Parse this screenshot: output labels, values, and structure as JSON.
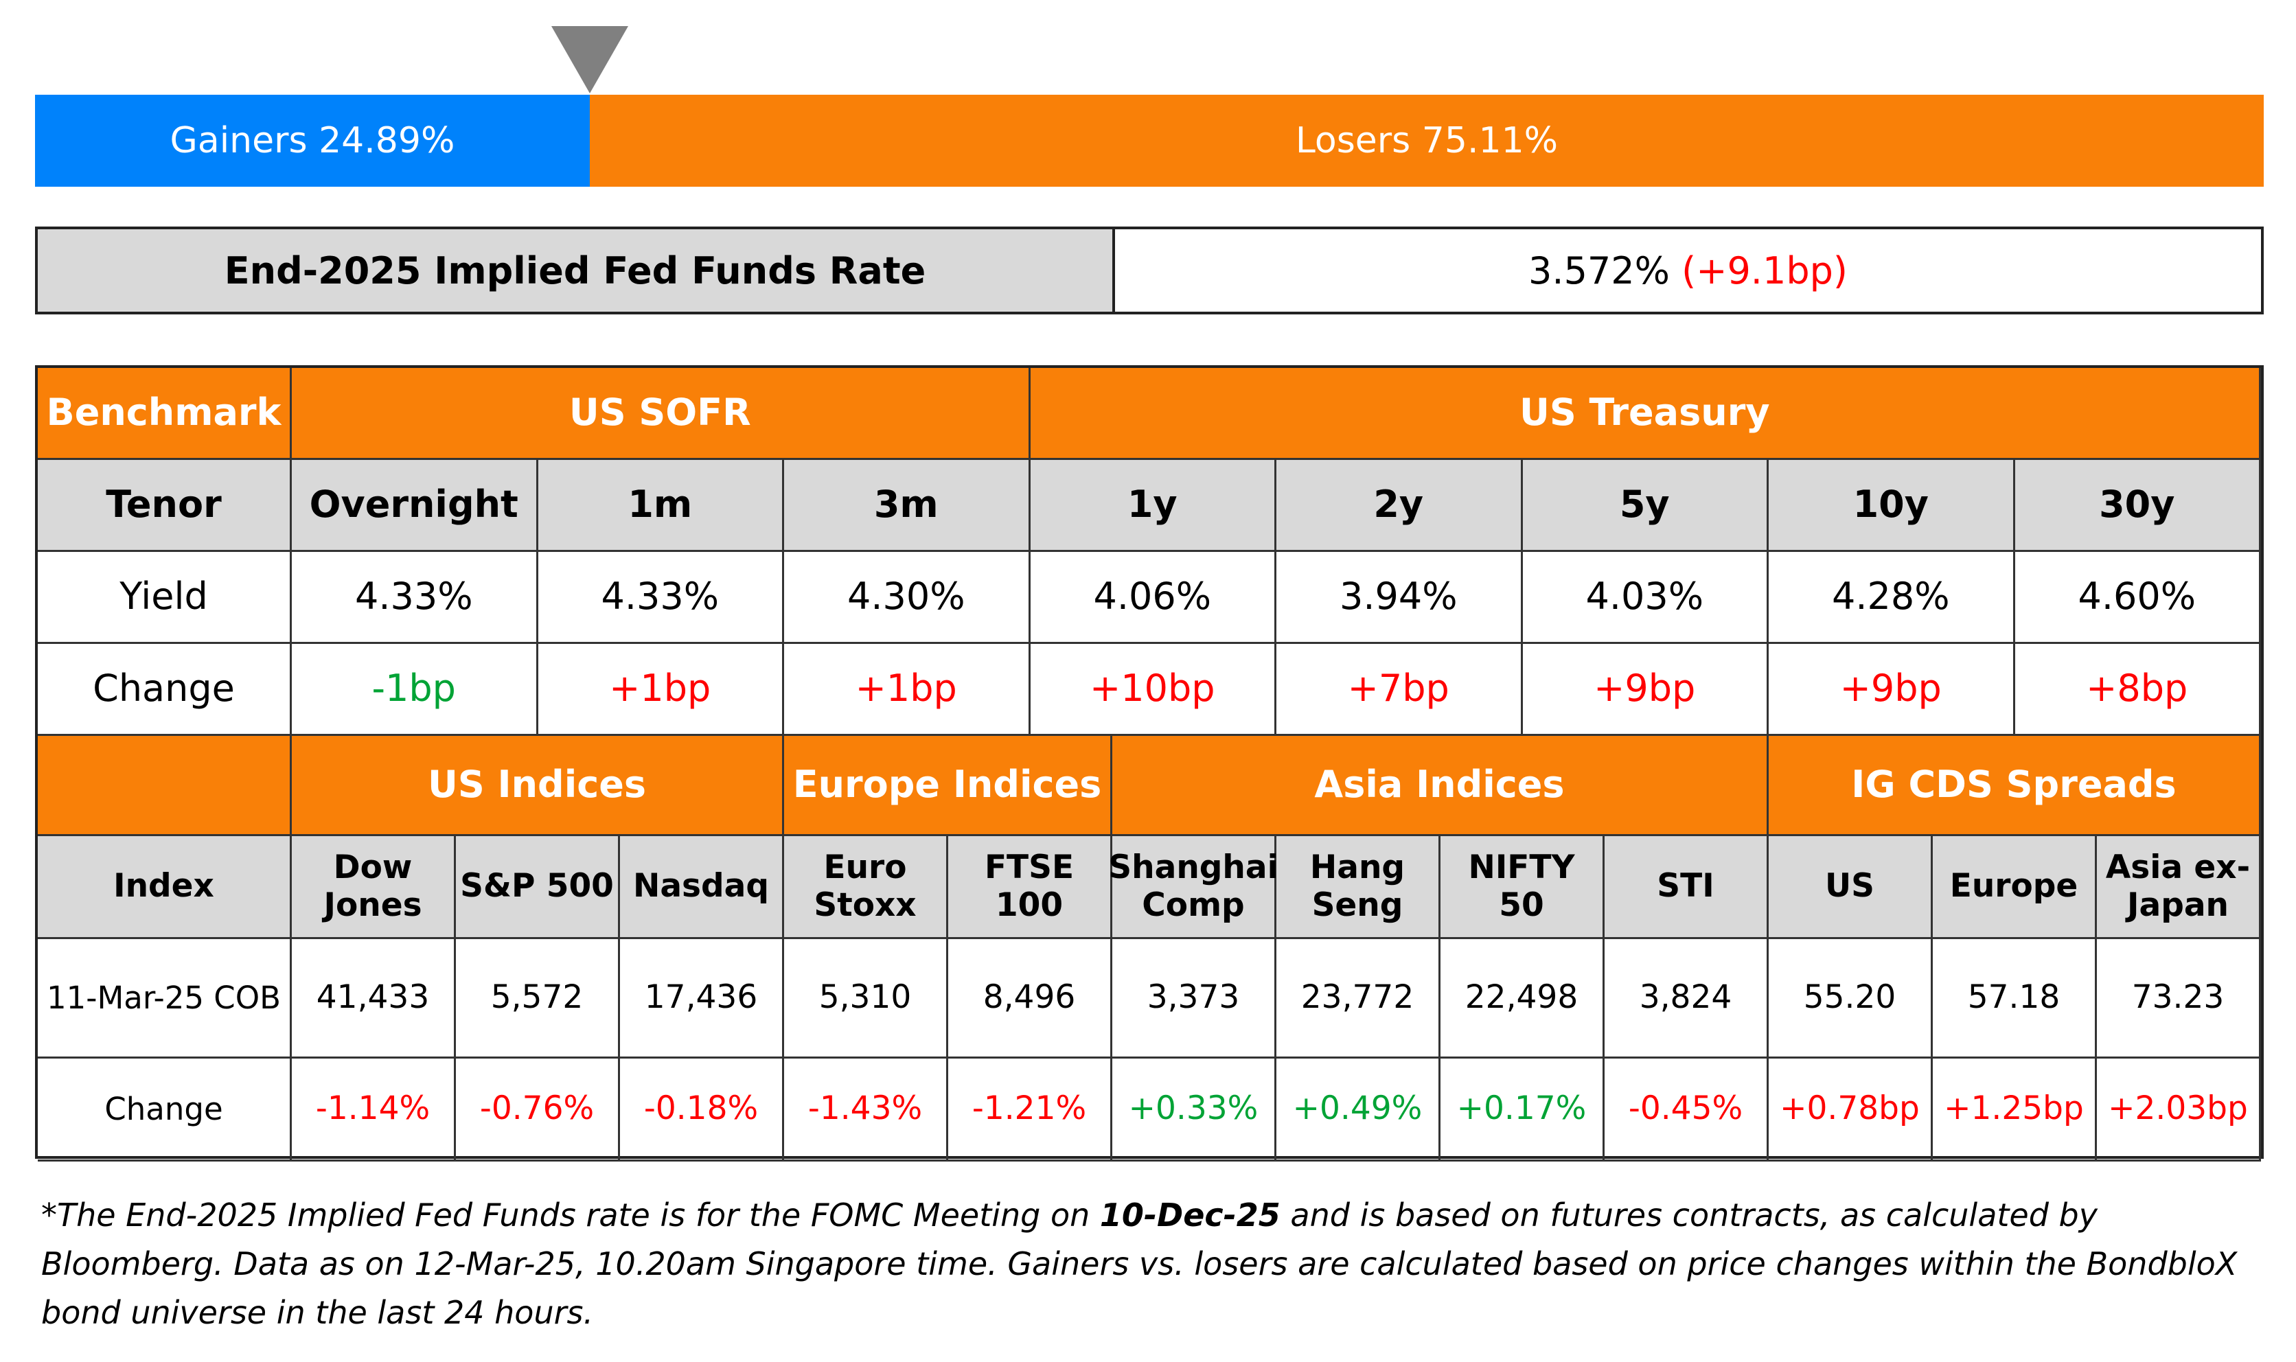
{
  "breadth": {
    "gainers_label": "Gainers 24.89%",
    "losers_label": "Losers 75.11%",
    "gainers_pct": 24.89,
    "losers_pct": 75.11,
    "gainers_color": "#0082fb",
    "losers_color": "#f98008"
  },
  "fed_funds": {
    "label": "End-2025 Implied Fed Funds Rate",
    "value": "3.572%",
    "change": "(+9.1bp)"
  },
  "rates": {
    "benchmark_label": "Benchmark",
    "sofr_label": "US SOFR",
    "treasury_label": "US Treasury",
    "tenor_label": "Tenor",
    "yield_label": "Yield",
    "change_label": "Change",
    "tenors": [
      "Overnight",
      "1m",
      "3m",
      "1y",
      "2y",
      "5y",
      "10y",
      "30y"
    ],
    "yields": [
      "4.33%",
      "4.33%",
      "4.30%",
      "4.06%",
      "3.94%",
      "4.03%",
      "4.28%",
      "4.60%"
    ],
    "changes": [
      "-1bp",
      "+1bp",
      "+1bp",
      "+10bp",
      "+7bp",
      "+9bp",
      "+9bp",
      "+8bp"
    ]
  },
  "indices": {
    "us_label": "US Indices",
    "europe_label": "Europe Indices",
    "asia_label": "Asia Indices",
    "cds_label": "IG CDS Spreads",
    "index_label": "Index",
    "date_label": "11-Mar-25 COB",
    "change_label": "Change",
    "names": [
      "Dow Jones",
      "S&P 500",
      "Nasdaq",
      "Euro Stoxx",
      "FTSE 100",
      "Shanghai Comp",
      "Hang Seng",
      "NIFTY 50",
      "STI",
      "US",
      "Europe",
      "Asia ex-Japan"
    ],
    "values": [
      "41,433",
      "5,572",
      "17,436",
      "5,310",
      "8,496",
      "3,373",
      "23,772",
      "22,498",
      "3,824",
      "55.20",
      "57.18",
      "73.23"
    ],
    "changes": [
      "-1.14%",
      "-0.76%",
      "-0.18%",
      "-1.43%",
      "-1.21%",
      "+0.33%",
      "+0.49%",
      "+0.17%",
      "-0.45%",
      "+0.78bp",
      "+1.25bp",
      "+2.03bp"
    ]
  },
  "footnote": {
    "part1": "*The End-2025 Implied Fed Funds rate is for the FOMC Meeting on ",
    "bold": "10-Dec-25",
    "part2": " and is based on futures contracts, as calculated by Bloomberg. Data as on 12-Mar-25, 10.20am Singapore time. Gainers vs. losers are calculated based on price changes within the BondbloX bond universe in the last 24 hours."
  }
}
